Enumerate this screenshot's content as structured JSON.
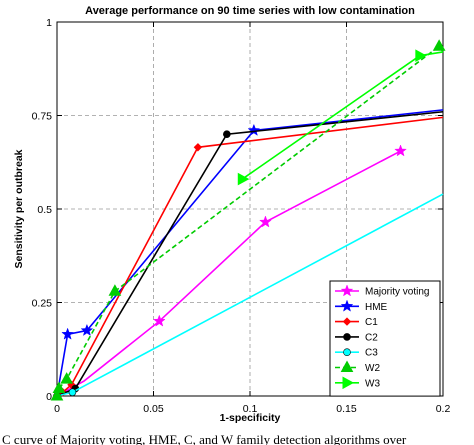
{
  "caption": "C curve of Majority voting, HME, C, and W family detection algorithms over",
  "chart_data": {
    "type": "line",
    "title": "Average performance on 90 time series with low contamination",
    "xlabel": "1-specificity",
    "ylabel": "Sensitivity per outbreak",
    "xlim": [
      0,
      0.2
    ],
    "ylim": [
      0,
      1
    ],
    "xticks": [
      0,
      0.05,
      0.1,
      0.15,
      0.2
    ],
    "xtick_labels": [
      "0",
      "0.05",
      "0.1",
      "0.15",
      "0.2"
    ],
    "yticks": [
      0,
      0.25,
      0.5,
      0.75,
      1
    ],
    "ytick_labels": [
      "0",
      "0.25",
      "0.5",
      "0.75",
      "1"
    ],
    "grid": true,
    "legend_position": "bottom-right",
    "series": [
      {
        "name": "Majority voting",
        "color": "#ff00ff",
        "marker": "star",
        "dash": "solid",
        "x": [
          0,
          0.0035,
          0.014,
          0.053,
          0.108,
          0.178
        ],
        "y": [
          0,
          0.01,
          0.04,
          0.2,
          0.465,
          0.655
        ],
        "marked": [
          false,
          false,
          false,
          true,
          true,
          true
        ]
      },
      {
        "name": "HME",
        "color": "#0000ff",
        "marker": "star",
        "dash": "solid",
        "x": [
          0,
          0.0055,
          0.0155,
          0.102,
          0.2
        ],
        "y": [
          0,
          0.165,
          0.175,
          0.71,
          0.765
        ],
        "marked": [
          false,
          true,
          true,
          true,
          false
        ]
      },
      {
        "name": "C1",
        "color": "#ff0000",
        "marker": "diamond",
        "dash": "solid",
        "x": [
          0,
          0.003,
          0.0075,
          0.073,
          0.2
        ],
        "y": [
          0,
          0.01,
          0.03,
          0.665,
          0.745
        ],
        "marked": [
          true,
          true,
          true,
          true,
          false
        ]
      },
      {
        "name": "C2",
        "color": "#000000",
        "marker": "circle",
        "dash": "solid",
        "x": [
          0,
          0.0095,
          0.088,
          0.2
        ],
        "y": [
          0,
          0.02,
          0.7,
          0.76
        ],
        "marked": [
          true,
          true,
          true,
          false
        ]
      },
      {
        "name": "C3",
        "color": "#00ffff",
        "marker": "circle",
        "dash": "solid",
        "x": [
          0,
          0.008,
          0.2
        ],
        "y": [
          0,
          0.01,
          0.54
        ],
        "marked": [
          true,
          true,
          false
        ]
      },
      {
        "name": "W2",
        "color": "#00cc00",
        "marker": "triangle-up",
        "dash": "dashed",
        "x": [
          0,
          0.001,
          0.005,
          0.03,
          0.198,
          0.2
        ],
        "y": [
          0,
          0.02,
          0.045,
          0.28,
          0.935,
          0.92
        ],
        "marked": [
          true,
          true,
          true,
          true,
          true,
          false
        ]
      },
      {
        "name": "W3",
        "color": "#00ff00",
        "marker": "triangle-right",
        "dash": "solid",
        "x": [
          0.096,
          0.188,
          0.2
        ],
        "y": [
          0.58,
          0.91,
          0.92
        ],
        "marked": [
          true,
          true,
          false
        ]
      }
    ]
  }
}
